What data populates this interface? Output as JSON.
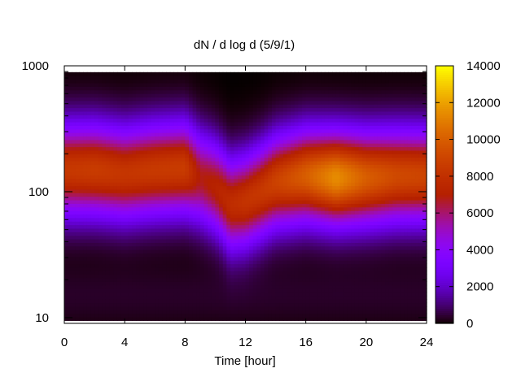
{
  "chart_data": {
    "type": "heatmap",
    "title": "dN / d log d (5/9/1)",
    "xlabel": "Time [hour]",
    "ylabel": "",
    "xlim": [
      0,
      24
    ],
    "xticks": [
      "0",
      "4",
      "8",
      "12",
      "16",
      "20",
      "24"
    ],
    "xtick_values": [
      0,
      4,
      8,
      12,
      16,
      20,
      24
    ],
    "yscale": "log",
    "ylim": [
      9,
      1000
    ],
    "yticks": [
      "10",
      "100",
      "1000"
    ],
    "ytick_values": [
      10,
      100,
      1000
    ],
    "colorbar": {
      "range": [
        0,
        14000
      ],
      "ticks": [
        "0",
        "2000",
        "4000",
        "6000",
        "8000",
        "10000",
        "12000",
        "14000"
      ],
      "tick_values": [
        0,
        2000,
        4000,
        6000,
        8000,
        10000,
        12000,
        14000
      ],
      "colormap": "gnuplot"
    },
    "grid": false,
    "z_description": "Particle number size distribution versus time and diameter",
    "peak_diameter_by_hour": {
      "x": [
        0,
        2,
        4,
        6,
        8,
        9,
        10,
        11,
        12,
        13,
        14,
        16,
        18,
        20,
        22,
        24
      ],
      "diameter": [
        150,
        150,
        140,
        150,
        155,
        130,
        110,
        80,
        85,
        100,
        120,
        135,
        130,
        130,
        135,
        135
      ]
    },
    "peak_value_by_hour": {
      "x": [
        0,
        2,
        4,
        6,
        8,
        9,
        10,
        11,
        12,
        13,
        14,
        16,
        18,
        20,
        22,
        24
      ],
      "value": [
        8400,
        8600,
        8300,
        8500,
        8600,
        6800,
        7200,
        7800,
        8200,
        8400,
        8900,
        10000,
        11500,
        10000,
        9200,
        9000
      ]
    }
  }
}
